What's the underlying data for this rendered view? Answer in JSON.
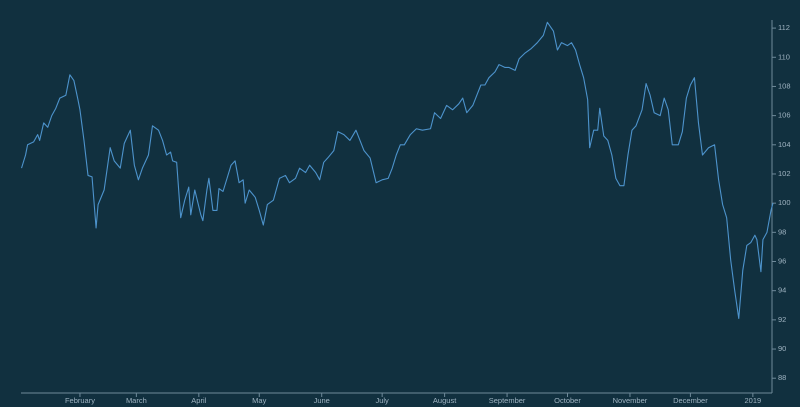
{
  "chart_data": {
    "type": "line",
    "x": [
      2,
      4,
      5,
      8,
      10,
      11,
      13,
      15,
      17,
      19,
      21,
      24,
      26,
      28,
      30,
      31,
      33,
      35,
      37,
      39,
      40,
      43,
      46,
      48,
      51,
      53,
      56,
      58,
      60,
      62,
      65,
      67,
      70,
      72,
      74,
      76,
      77,
      79,
      81,
      83,
      85,
      86,
      88,
      91,
      92,
      94,
      95,
      97,
      99,
      100,
      102,
      104,
      106,
      108,
      110,
      112,
      113,
      115,
      118,
      120,
      122,
      124,
      127,
      130,
      133,
      135,
      138,
      140,
      143,
      145,
      148,
      150,
      152,
      154,
      157,
      159,
      162,
      165,
      168,
      170,
      172,
      175,
      178,
      181,
      184,
      186,
      188,
      190,
      192,
      195,
      198,
      201,
      205,
      207,
      210,
      213,
      216,
      219,
      221,
      223,
      226,
      228,
      230,
      232,
      234,
      237,
      239,
      242,
      244,
      247,
      249,
      252,
      255,
      258,
      261,
      263,
      266,
      268,
      270,
      273,
      275,
      277,
      279,
      281,
      283,
      284,
      286,
      288,
      289,
      291,
      293,
      295,
      297,
      299,
      301,
      303,
      305,
      307,
      310,
      312,
      314,
      316,
      319,
      321,
      323,
      325,
      328,
      330,
      332,
      334,
      336,
      338,
      340,
      343,
      346,
      348,
      350,
      352,
      354,
      356,
      358,
      360,
      362,
      364,
      366,
      367,
      369,
      370,
      372,
      374,
      375
    ],
    "series": [
      {
        "color": "#4d93cc",
        "values": [
          102.4,
          103.3,
          104.0,
          104.2,
          104.7,
          104.3,
          105.5,
          105.2,
          106.0,
          106.5,
          107.2,
          107.4,
          108.8,
          108.4,
          107.1,
          106.4,
          104.3,
          101.9,
          101.8,
          98.3,
          99.9,
          100.9,
          103.8,
          102.9,
          102.4,
          104.1,
          105.0,
          102.6,
          101.6,
          102.4,
          103.3,
          105.3,
          105.0,
          104.3,
          103.3,
          103.5,
          102.9,
          102.8,
          99.0,
          100.2,
          101.1,
          99.2,
          100.9,
          99.2,
          98.8,
          100.9,
          101.7,
          99.5,
          99.5,
          101.0,
          100.8,
          101.7,
          102.6,
          102.9,
          101.4,
          101.6,
          100.0,
          100.9,
          100.4,
          99.5,
          98.5,
          99.9,
          100.2,
          101.7,
          101.9,
          101.4,
          101.7,
          102.4,
          102.1,
          102.6,
          102.1,
          101.6,
          102.8,
          103.1,
          103.6,
          104.9,
          104.7,
          104.3,
          105.0,
          104.3,
          103.6,
          103.1,
          101.4,
          101.6,
          101.7,
          102.4,
          103.3,
          104.0,
          104.0,
          104.7,
          105.1,
          105.0,
          105.1,
          106.2,
          105.8,
          106.7,
          106.4,
          106.8,
          107.2,
          106.2,
          106.7,
          107.4,
          108.1,
          108.1,
          108.6,
          109.0,
          109.5,
          109.3,
          109.3,
          109.1,
          109.9,
          110.3,
          110.6,
          111.0,
          111.5,
          112.4,
          111.8,
          110.5,
          111.0,
          110.8,
          111.0,
          110.5,
          109.5,
          108.6,
          107.1,
          103.8,
          105.0,
          105.0,
          106.5,
          104.6,
          104.3,
          103.3,
          101.7,
          101.2,
          101.2,
          103.3,
          105.0,
          105.3,
          106.4,
          108.2,
          107.4,
          106.2,
          106.0,
          107.2,
          106.4,
          104.0,
          104.0,
          104.9,
          107.2,
          108.1,
          108.6,
          105.5,
          103.3,
          103.8,
          104.0,
          101.6,
          99.9,
          99.0,
          96.1,
          94.0,
          92.1,
          95.4,
          97.1,
          97.3,
          97.8,
          97.5,
          95.3,
          97.5,
          98.0,
          99.5,
          100.0
        ]
      }
    ],
    "xlim": [
      0,
      375
    ],
    "xticks": [
      {
        "value": 31,
        "label": "February"
      },
      {
        "value": 59,
        "label": "March"
      },
      {
        "value": 90,
        "label": "April"
      },
      {
        "value": 120,
        "label": "May"
      },
      {
        "value": 151,
        "label": "June"
      },
      {
        "value": 181,
        "label": "July"
      },
      {
        "value": 212,
        "label": "August"
      },
      {
        "value": 243,
        "label": "September"
      },
      {
        "value": 273,
        "label": "October"
      },
      {
        "value": 304,
        "label": "November"
      },
      {
        "value": 334,
        "label": "December"
      },
      {
        "value": 365,
        "label": "2019"
      }
    ],
    "ylim": [
      87,
      112.5
    ],
    "yticks": [
      88,
      90,
      92,
      94,
      96,
      98,
      100,
      102,
      104,
      106,
      108,
      110,
      112
    ],
    "grid": false
  }
}
